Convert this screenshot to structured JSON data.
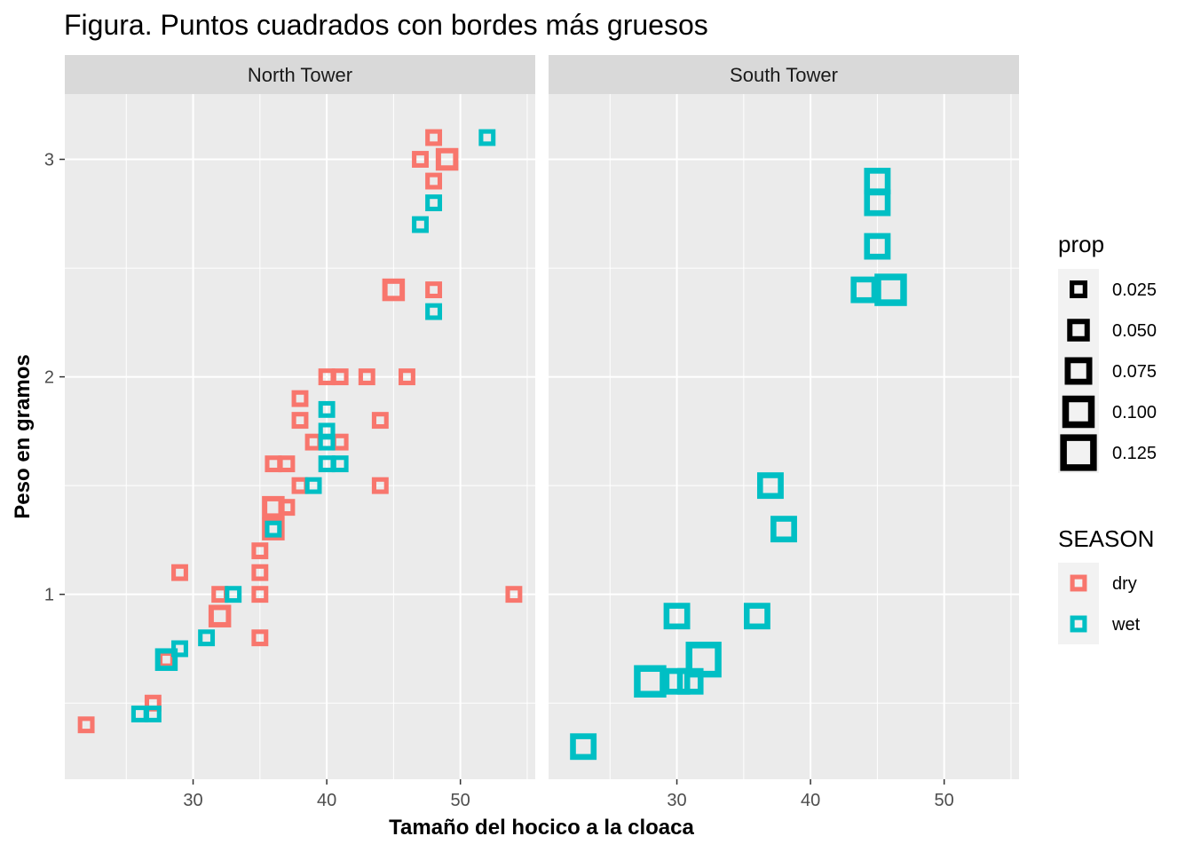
{
  "chart_data": {
    "type": "scatter",
    "title": "Figura. Puntos cuadrados con bordes más gruesos",
    "xlabel": "Tamaño del hocico a la cloaca",
    "ylabel": "Peso en gramos",
    "xlim": [
      20.4,
      55.6
    ],
    "ylim": [
      0.15,
      3.3
    ],
    "x_ticks": [
      30,
      40,
      50
    ],
    "y_ticks": [
      1,
      2,
      3
    ],
    "grid": true,
    "panels": [
      "North Tower",
      "South Tower"
    ],
    "colors": {
      "dry": "#F8766D",
      "wet": "#00BFC4"
    },
    "legend": {
      "position": "right",
      "size_title": "prop",
      "size_breaks": [
        0.025,
        0.05,
        0.075,
        0.1,
        0.125
      ],
      "size_labels": [
        "0.025",
        "0.050",
        "0.075",
        "0.100",
        "0.125"
      ],
      "color_title": "SEASON",
      "color_labels": [
        "dry",
        "wet"
      ]
    },
    "series": [
      {
        "name": "dry",
        "points": [
          {
            "panel": "North Tower",
            "x": 48,
            "y": 3.1,
            "prop": 0.02
          },
          {
            "panel": "North Tower",
            "x": 47,
            "y": 3.0,
            "prop": 0.02
          },
          {
            "panel": "North Tower",
            "x": 49,
            "y": 3.0,
            "prop": 0.05
          },
          {
            "panel": "North Tower",
            "x": 48,
            "y": 2.9,
            "prop": 0.02
          },
          {
            "panel": "North Tower",
            "x": 45,
            "y": 2.4,
            "prop": 0.05
          },
          {
            "panel": "North Tower",
            "x": 48,
            "y": 2.4,
            "prop": 0.02
          },
          {
            "panel": "North Tower",
            "x": 40,
            "y": 2.0,
            "prop": 0.02
          },
          {
            "panel": "North Tower",
            "x": 41,
            "y": 2.0,
            "prop": 0.02
          },
          {
            "panel": "North Tower",
            "x": 43,
            "y": 2.0,
            "prop": 0.02
          },
          {
            "panel": "North Tower",
            "x": 46,
            "y": 2.0,
            "prop": 0.02
          },
          {
            "panel": "North Tower",
            "x": 38,
            "y": 1.9,
            "prop": 0.02
          },
          {
            "panel": "North Tower",
            "x": 38,
            "y": 1.8,
            "prop": 0.02
          },
          {
            "panel": "North Tower",
            "x": 44,
            "y": 1.8,
            "prop": 0.02
          },
          {
            "panel": "North Tower",
            "x": 39,
            "y": 1.7,
            "prop": 0.02
          },
          {
            "panel": "North Tower",
            "x": 41,
            "y": 1.7,
            "prop": 0.02
          },
          {
            "panel": "North Tower",
            "x": 36,
            "y": 1.6,
            "prop": 0.02
          },
          {
            "panel": "North Tower",
            "x": 37,
            "y": 1.6,
            "prop": 0.02
          },
          {
            "panel": "North Tower",
            "x": 38,
            "y": 1.5,
            "prop": 0.02
          },
          {
            "panel": "North Tower",
            "x": 44,
            "y": 1.5,
            "prop": 0.02
          },
          {
            "panel": "North Tower",
            "x": 36,
            "y": 1.4,
            "prop": 0.05
          },
          {
            "panel": "North Tower",
            "x": 37,
            "y": 1.4,
            "prop": 0.02
          },
          {
            "panel": "North Tower",
            "x": 36,
            "y": 1.3,
            "prop": 0.05
          },
          {
            "panel": "North Tower",
            "x": 35,
            "y": 1.2,
            "prop": 0.02
          },
          {
            "panel": "North Tower",
            "x": 29,
            "y": 1.1,
            "prop": 0.02
          },
          {
            "panel": "North Tower",
            "x": 35,
            "y": 1.1,
            "prop": 0.02
          },
          {
            "panel": "North Tower",
            "x": 32,
            "y": 1.0,
            "prop": 0.02
          },
          {
            "panel": "North Tower",
            "x": 35,
            "y": 1.0,
            "prop": 0.02
          },
          {
            "panel": "North Tower",
            "x": 54,
            "y": 1.0,
            "prop": 0.02
          },
          {
            "panel": "North Tower",
            "x": 32,
            "y": 0.9,
            "prop": 0.05
          },
          {
            "panel": "North Tower",
            "x": 35,
            "y": 0.8,
            "prop": 0.02
          },
          {
            "panel": "North Tower",
            "x": 28,
            "y": 0.7,
            "prop": 0.02
          },
          {
            "panel": "North Tower",
            "x": 27,
            "y": 0.5,
            "prop": 0.02
          },
          {
            "panel": "North Tower",
            "x": 22,
            "y": 0.4,
            "prop": 0.02
          }
        ]
      },
      {
        "name": "wet",
        "points": [
          {
            "panel": "North Tower",
            "x": 52,
            "y": 3.1,
            "prop": 0.02
          },
          {
            "panel": "North Tower",
            "x": 48,
            "y": 2.8,
            "prop": 0.02
          },
          {
            "panel": "North Tower",
            "x": 47,
            "y": 2.7,
            "prop": 0.02
          },
          {
            "panel": "North Tower",
            "x": 48,
            "y": 2.3,
            "prop": 0.02
          },
          {
            "panel": "North Tower",
            "x": 40,
            "y": 1.85,
            "prop": 0.02
          },
          {
            "panel": "North Tower",
            "x": 40,
            "y": 1.75,
            "prop": 0.02
          },
          {
            "panel": "North Tower",
            "x": 40,
            "y": 1.7,
            "prop": 0.02
          },
          {
            "panel": "North Tower",
            "x": 40,
            "y": 1.6,
            "prop": 0.02
          },
          {
            "panel": "North Tower",
            "x": 41,
            "y": 1.6,
            "prop": 0.02
          },
          {
            "panel": "North Tower",
            "x": 39,
            "y": 1.5,
            "prop": 0.02
          },
          {
            "panel": "North Tower",
            "x": 36,
            "y": 1.3,
            "prop": 0.02
          },
          {
            "panel": "North Tower",
            "x": 33,
            "y": 1.0,
            "prop": 0.02
          },
          {
            "panel": "North Tower",
            "x": 31,
            "y": 0.8,
            "prop": 0.02
          },
          {
            "panel": "North Tower",
            "x": 29,
            "y": 0.75,
            "prop": 0.02
          },
          {
            "panel": "North Tower",
            "x": 28,
            "y": 0.7,
            "prop": 0.05
          },
          {
            "panel": "North Tower",
            "x": 26,
            "y": 0.45,
            "prop": 0.02
          },
          {
            "panel": "North Tower",
            "x": 27,
            "y": 0.45,
            "prop": 0.02
          },
          {
            "panel": "South Tower",
            "x": 45,
            "y": 2.9,
            "prop": 0.07
          },
          {
            "panel": "South Tower",
            "x": 45,
            "y": 2.8,
            "prop": 0.07
          },
          {
            "panel": "South Tower",
            "x": 45,
            "y": 2.6,
            "prop": 0.07
          },
          {
            "panel": "South Tower",
            "x": 44,
            "y": 2.4,
            "prop": 0.07
          },
          {
            "panel": "South Tower",
            "x": 46,
            "y": 2.4,
            "prop": 0.1
          },
          {
            "panel": "South Tower",
            "x": 37,
            "y": 1.5,
            "prop": 0.07
          },
          {
            "panel": "South Tower",
            "x": 38,
            "y": 1.3,
            "prop": 0.07
          },
          {
            "panel": "South Tower",
            "x": 30,
            "y": 0.9,
            "prop": 0.07
          },
          {
            "panel": "South Tower",
            "x": 36,
            "y": 0.9,
            "prop": 0.07
          },
          {
            "panel": "South Tower",
            "x": 32,
            "y": 0.7,
            "prop": 0.12
          },
          {
            "panel": "South Tower",
            "x": 28,
            "y": 0.6,
            "prop": 0.1
          },
          {
            "panel": "South Tower",
            "x": 30,
            "y": 0.6,
            "prop": 0.07
          },
          {
            "panel": "South Tower",
            "x": 31,
            "y": 0.6,
            "prop": 0.07
          },
          {
            "panel": "South Tower",
            "x": 23,
            "y": 0.3,
            "prop": 0.07
          }
        ]
      }
    ]
  }
}
